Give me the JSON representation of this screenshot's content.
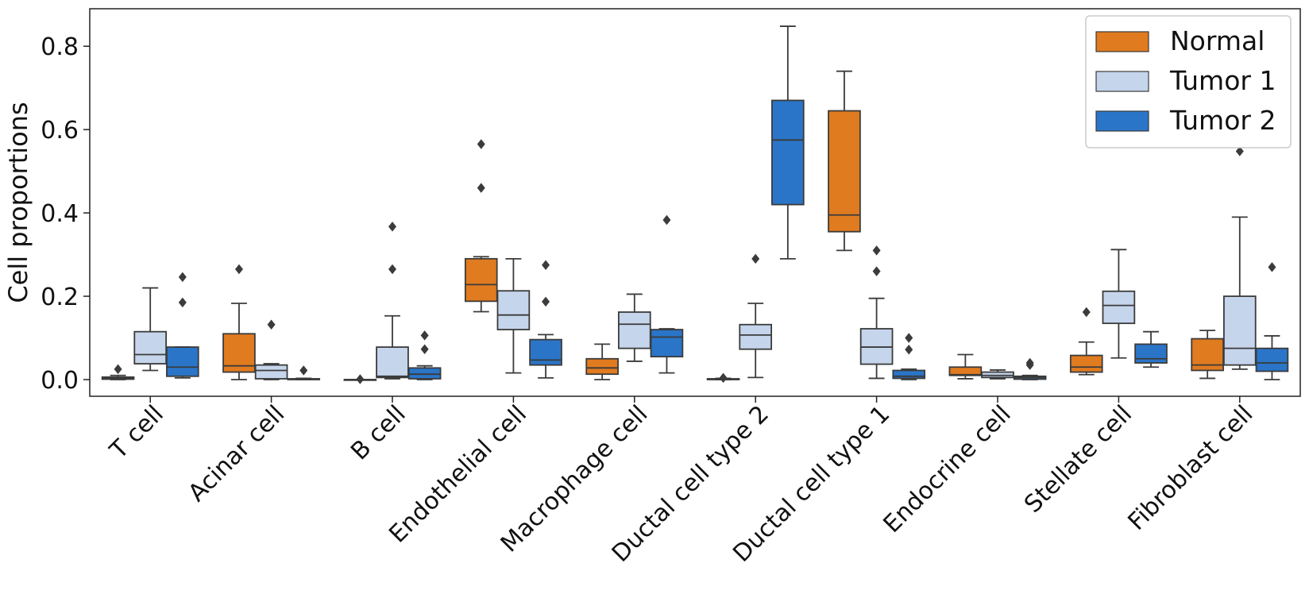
{
  "chart_data": {
    "type": "box",
    "ylabel": "Cell proportions",
    "ylim": [
      -0.04,
      0.89
    ],
    "yticks": [
      0.0,
      0.2,
      0.4,
      0.6,
      0.8
    ],
    "ytick_labels": [
      "0.0",
      "0.2",
      "0.4",
      "0.6",
      "0.8"
    ],
    "grid": false,
    "legend_position": "top-right",
    "categories": [
      "T cell",
      "Acinar cell",
      "B cell",
      "Endothelial cell",
      "Macrophage cell",
      "Ductal cell type 2",
      "Ductal cell type 1",
      "Endocrine cell",
      "Stellate cell",
      "Fibroblast cell"
    ],
    "series": [
      {
        "name": "Normal",
        "color": "#e07b1f",
        "boxes": [
          {
            "whislo": 0.0,
            "q1": 0.001,
            "med": 0.003,
            "q3": 0.006,
            "whishi": 0.01,
            "fliers": [
              0.025
            ]
          },
          {
            "whislo": 0.0,
            "q1": 0.018,
            "med": 0.033,
            "q3": 0.11,
            "whishi": 0.183,
            "fliers": [
              0.265
            ]
          },
          {
            "whislo": 0.0,
            "q1": 0.0,
            "med": 0.0,
            "q3": 0.0,
            "whishi": 0.0,
            "fliers": [
              0.001
            ]
          },
          {
            "whislo": 0.163,
            "q1": 0.188,
            "med": 0.228,
            "q3": 0.29,
            "whishi": 0.295,
            "fliers": [
              0.46,
              0.565
            ]
          },
          {
            "whislo": 0.0,
            "q1": 0.013,
            "med": 0.028,
            "q3": 0.05,
            "whishi": 0.085,
            "fliers": []
          },
          {
            "whislo": 0.0,
            "q1": 0.0,
            "med": 0.001,
            "q3": 0.002,
            "whishi": 0.003,
            "fliers": [
              0.004
            ]
          },
          {
            "whislo": 0.31,
            "q1": 0.355,
            "med": 0.395,
            "q3": 0.645,
            "whishi": 0.74,
            "fliers": []
          },
          {
            "whislo": 0.002,
            "q1": 0.01,
            "med": 0.012,
            "q3": 0.03,
            "whishi": 0.06,
            "fliers": []
          },
          {
            "whislo": 0.012,
            "q1": 0.018,
            "med": 0.03,
            "q3": 0.058,
            "whishi": 0.09,
            "fliers": [
              0.162
            ]
          },
          {
            "whislo": 0.003,
            "q1": 0.022,
            "med": 0.035,
            "q3": 0.098,
            "whishi": 0.118,
            "fliers": []
          }
        ]
      },
      {
        "name": "Tumor 1",
        "color": "#c5d5ec",
        "boxes": [
          {
            "whislo": 0.022,
            "q1": 0.038,
            "med": 0.06,
            "q3": 0.115,
            "whishi": 0.22,
            "fliers": []
          },
          {
            "whislo": 0.0,
            "q1": 0.002,
            "med": 0.022,
            "q3": 0.035,
            "whishi": 0.038,
            "fliers": [
              0.132
            ]
          },
          {
            "whislo": 0.002,
            "q1": 0.005,
            "med": 0.008,
            "q3": 0.078,
            "whishi": 0.153,
            "fliers": [
              0.265,
              0.367
            ]
          },
          {
            "whislo": 0.016,
            "q1": 0.12,
            "med": 0.155,
            "q3": 0.213,
            "whishi": 0.29,
            "fliers": []
          },
          {
            "whislo": 0.044,
            "q1": 0.075,
            "med": 0.133,
            "q3": 0.162,
            "whishi": 0.205,
            "fliers": []
          },
          {
            "whislo": 0.005,
            "q1": 0.073,
            "med": 0.107,
            "q3": 0.132,
            "whishi": 0.183,
            "fliers": [
              0.29
            ]
          },
          {
            "whislo": 0.003,
            "q1": 0.037,
            "med": 0.078,
            "q3": 0.122,
            "whishi": 0.195,
            "fliers": [
              0.26,
              0.31
            ]
          },
          {
            "whislo": 0.002,
            "q1": 0.005,
            "med": 0.01,
            "q3": 0.018,
            "whishi": 0.023,
            "fliers": []
          },
          {
            "whislo": 0.052,
            "q1": 0.135,
            "med": 0.178,
            "q3": 0.212,
            "whishi": 0.312,
            "fliers": []
          },
          {
            "whislo": 0.025,
            "q1": 0.035,
            "med": 0.075,
            "q3": 0.2,
            "whishi": 0.39,
            "fliers": [
              0.548
            ]
          }
        ]
      },
      {
        "name": "Tumor 2",
        "color": "#2a75c7",
        "boxes": [
          {
            "whislo": 0.004,
            "q1": 0.008,
            "med": 0.03,
            "q3": 0.078,
            "whishi": 0.078,
            "fliers": [
              0.185,
              0.246
            ]
          },
          {
            "whislo": 0.0,
            "q1": 0.0,
            "med": 0.001,
            "q3": 0.002,
            "whishi": 0.003,
            "fliers": [
              0.022
            ]
          },
          {
            "whislo": 0.0,
            "q1": 0.002,
            "med": 0.013,
            "q3": 0.028,
            "whishi": 0.033,
            "fliers": [
              0.073,
              0.106
            ]
          },
          {
            "whislo": 0.004,
            "q1": 0.035,
            "med": 0.047,
            "q3": 0.096,
            "whishi": 0.108,
            "fliers": [
              0.187,
              0.275
            ]
          },
          {
            "whislo": 0.016,
            "q1": 0.055,
            "med": 0.102,
            "q3": 0.12,
            "whishi": 0.122,
            "fliers": [
              0.383
            ]
          },
          {
            "whislo": 0.29,
            "q1": 0.42,
            "med": 0.575,
            "q3": 0.67,
            "whishi": 0.848,
            "fliers": []
          },
          {
            "whislo": 0.0,
            "q1": 0.003,
            "med": 0.008,
            "q3": 0.022,
            "whishi": 0.025,
            "fliers": [
              0.072,
              0.1
            ]
          },
          {
            "whislo": 0.0,
            "q1": 0.001,
            "med": 0.005,
            "q3": 0.008,
            "whishi": 0.01,
            "fliers": [
              0.035,
              0.04
            ]
          },
          {
            "whislo": 0.03,
            "q1": 0.04,
            "med": 0.05,
            "q3": 0.085,
            "whishi": 0.115,
            "fliers": []
          },
          {
            "whislo": 0.0,
            "q1": 0.02,
            "med": 0.04,
            "q3": 0.075,
            "whishi": 0.105,
            "fliers": [
              0.27
            ]
          }
        ]
      }
    ]
  }
}
